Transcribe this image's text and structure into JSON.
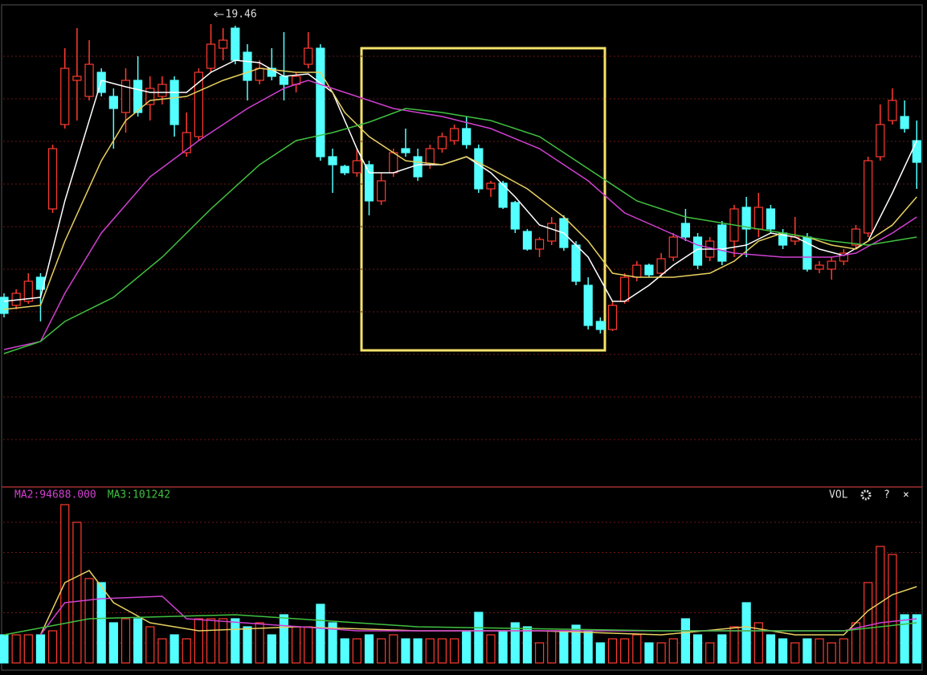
{
  "chart_data": [
    {
      "type": "candlestick",
      "annotation": "19.46",
      "ylim": [
        7.98,
        19.9
      ],
      "grid": true,
      "up_color": "#ff3b30",
      "down_color": "#54ffff",
      "open": [
        12.66,
        12.46,
        12.56,
        13.16,
        14.86,
        16.96,
        18.06,
        17.66,
        18.26,
        17.66,
        17.26,
        18.06,
        17.46,
        17.66,
        18.06,
        16.26,
        16.66,
        18.36,
        18.86,
        19.36,
        18.76,
        18.06,
        18.36,
        18.16,
        17.96,
        18.46,
        18.86,
        16.16,
        15.92,
        15.76,
        15.96,
        15.06,
        15.76,
        16.36,
        16.16,
        15.96,
        16.36,
        16.56,
        16.86,
        16.36,
        15.36,
        15.5,
        15.02,
        14.3,
        13.86,
        14.06,
        14.62,
        13.96,
        12.96,
        12.06,
        11.86,
        12.56,
        13.16,
        13.46,
        13.26,
        13.66,
        14.5,
        14.16,
        13.66,
        14.46,
        14.06,
        14.9,
        14.36,
        14.86,
        14.26,
        14.06,
        14.16,
        13.36,
        13.36,
        13.56,
        13.96,
        14.26,
        16.16,
        17.06,
        17.16,
        16.56
      ],
      "high": [
        12.76,
        12.86,
        13.26,
        13.26,
        16.46,
        18.86,
        19.36,
        19.06,
        18.36,
        17.86,
        18.36,
        18.66,
        18.16,
        18.16,
        18.16,
        17.26,
        18.36,
        19.46,
        19.36,
        19.42,
        18.96,
        18.56,
        18.86,
        19.26,
        18.26,
        19.26,
        18.96,
        16.36,
        15.96,
        16.36,
        16.06,
        15.76,
        16.36,
        16.86,
        16.36,
        16.46,
        16.76,
        16.96,
        17.16,
        16.46,
        15.56,
        15.56,
        15.06,
        14.36,
        14.16,
        14.66,
        14.7,
        14.06,
        13.16,
        12.16,
        12.56,
        13.26,
        13.56,
        13.5,
        13.76,
        14.26,
        14.86,
        14.26,
        14.16,
        14.56,
        14.96,
        15.16,
        15.26,
        14.96,
        14.36,
        14.66,
        14.26,
        13.56,
        13.66,
        13.86,
        14.46,
        16.16,
        17.46,
        17.86,
        17.56,
        17.06
      ],
      "low": [
        12.16,
        12.36,
        12.5,
        12.06,
        14.76,
        16.86,
        17.06,
        17.56,
        17.66,
        16.36,
        16.76,
        17.16,
        17.06,
        17.46,
        16.66,
        16.16,
        16.56,
        18.26,
        18.56,
        18.46,
        17.56,
        17.96,
        18.06,
        17.56,
        17.76,
        18.36,
        16.06,
        15.26,
        15.7,
        15.66,
        14.7,
        14.96,
        15.66,
        16.16,
        15.56,
        15.86,
        16.26,
        16.46,
        16.36,
        15.26,
        15.16,
        14.86,
        14.26,
        13.82,
        13.66,
        13.96,
        13.82,
        12.96,
        11.86,
        11.76,
        11.82,
        12.5,
        13.06,
        13.16,
        13.16,
        13.56,
        14.06,
        13.36,
        13.56,
        13.46,
        13.66,
        13.66,
        14.16,
        14.26,
        13.86,
        13.96,
        13.3,
        13.26,
        13.1,
        13.46,
        13.86,
        14.16,
        16.06,
        16.96,
        16.76,
        15.36
      ],
      "close": [
        12.26,
        12.76,
        13.06,
        12.86,
        16.36,
        18.36,
        18.16,
        18.46,
        17.76,
        17.36,
        18.06,
        17.26,
        17.86,
        17.96,
        16.96,
        16.76,
        18.26,
        18.96,
        19.06,
        18.56,
        18.06,
        18.36,
        18.16,
        17.96,
        18.16,
        18.86,
        16.16,
        15.96,
        15.76,
        16.06,
        15.06,
        15.56,
        16.26,
        16.26,
        15.66,
        16.36,
        16.66,
        16.86,
        16.46,
        15.36,
        15.5,
        14.9,
        14.36,
        13.86,
        14.1,
        14.5,
        13.9,
        13.06,
        11.96,
        11.86,
        12.46,
        13.16,
        13.46,
        13.22,
        13.62,
        14.16,
        14.16,
        13.46,
        14.06,
        13.56,
        14.86,
        14.36,
        14.9,
        14.36,
        13.96,
        14.16,
        13.36,
        13.46,
        13.56,
        13.76,
        14.36,
        16.06,
        16.96,
        17.56,
        16.86,
        16.02
      ],
      "series": [
        {
          "color": "#ffffff",
          "x": [
            0,
            3,
            5,
            7,
            8,
            10,
            12,
            15,
            17,
            19,
            21,
            23,
            25,
            27,
            29,
            30,
            32,
            34,
            36,
            38,
            40,
            42,
            44,
            46,
            48,
            50,
            51,
            53,
            55,
            57,
            59,
            61,
            63,
            65,
            67,
            69,
            71,
            73,
            75
          ],
          "values": [
            12.56,
            12.66,
            15.06,
            17.06,
            18.06,
            17.9,
            17.76,
            17.76,
            18.26,
            18.56,
            18.5,
            18.16,
            18.22,
            17.76,
            16.36,
            15.76,
            15.76,
            15.96,
            15.96,
            16.16,
            15.76,
            15.16,
            14.46,
            14.26,
            13.66,
            12.56,
            12.56,
            12.96,
            13.46,
            13.86,
            13.86,
            13.96,
            14.26,
            14.16,
            13.86,
            13.7,
            14.06,
            15.26,
            16.56
          ]
        },
        {
          "color": "#e8d060",
          "x": [
            0,
            3,
            5,
            8,
            10,
            12,
            15,
            18,
            21,
            24,
            26,
            28,
            30,
            33,
            36,
            38,
            40,
            43,
            46,
            48,
            50,
            52,
            55,
            58,
            60,
            62,
            64,
            66,
            68,
            70,
            73,
            75
          ],
          "values": [
            12.36,
            12.46,
            14.06,
            16.06,
            17.06,
            17.56,
            17.66,
            18.06,
            18.36,
            18.26,
            18.26,
            17.26,
            16.66,
            16.06,
            15.96,
            16.16,
            15.86,
            15.36,
            14.66,
            14.06,
            13.26,
            13.16,
            13.16,
            13.26,
            13.56,
            14.06,
            14.26,
            14.16,
            13.96,
            13.86,
            14.46,
            15.16
          ]
        },
        {
          "color": "#d040d0",
          "x": [
            0,
            3,
            5,
            8,
            12,
            16,
            20,
            23,
            25,
            28,
            32,
            36,
            40,
            44,
            48,
            51,
            54,
            57,
            60,
            64,
            68,
            70,
            73,
            75
          ],
          "values": [
            11.36,
            11.56,
            12.76,
            14.26,
            15.66,
            16.56,
            17.36,
            17.86,
            18.06,
            17.76,
            17.36,
            17.16,
            16.86,
            16.36,
            15.56,
            14.76,
            14.36,
            13.96,
            13.76,
            13.66,
            13.66,
            13.76,
            14.26,
            14.66
          ]
        },
        {
          "color": "#40c040",
          "x": [
            0,
            3,
            5,
            9,
            13,
            17,
            21,
            24,
            27,
            30,
            33,
            36,
            40,
            44,
            48,
            52,
            56,
            60,
            64,
            68,
            71,
            73,
            75
          ],
          "values": [
            11.26,
            11.56,
            12.06,
            12.66,
            13.66,
            14.86,
            15.96,
            16.56,
            16.76,
            17.02,
            17.36,
            17.26,
            17.06,
            16.66,
            15.86,
            15.06,
            14.66,
            14.46,
            14.26,
            14.06,
            13.96,
            14.06,
            14.16
          ]
        }
      ]
    },
    {
      "type": "bar",
      "label": "VOL",
      "buttons": [
        "?",
        "×"
      ],
      "ylim": [
        0,
        430000
      ],
      "values": [
        70000,
        70000,
        70000,
        70000,
        80000,
        394000,
        350000,
        210000,
        200000,
        100000,
        110000,
        110000,
        90000,
        60000,
        70000,
        60000,
        110000,
        110000,
        110000,
        110000,
        90000,
        100000,
        70000,
        120000,
        90000,
        90000,
        146000,
        100000,
        60000,
        60000,
        70000,
        60000,
        70000,
        60000,
        60000,
        60000,
        60000,
        60000,
        80000,
        126000,
        70000,
        80000,
        100000,
        90000,
        50000,
        80000,
        80000,
        94000,
        80000,
        50000,
        60000,
        60000,
        70000,
        50000,
        50000,
        60000,
        110000,
        70000,
        50000,
        70000,
        90000,
        150000,
        100000,
        70000,
        60000,
        50000,
        60000,
        60000,
        50000,
        60000,
        100000,
        200000,
        290000,
        270000,
        120000,
        120000
      ],
      "series": [
        {
          "color": "#e8d060",
          "x": [
            3,
            5,
            7,
            9,
            12,
            16,
            24,
            34,
            44,
            54,
            61,
            65,
            69,
            71,
            73,
            75
          ],
          "values": [
            70000,
            200000,
            230000,
            150000,
            100000,
            80000,
            90000,
            80000,
            80000,
            70000,
            90000,
            70000,
            70000,
            130000,
            170000,
            190000
          ]
        },
        {
          "name": "MA2:94688.000",
          "color": "#d040d0",
          "x": [
            3,
            5,
            8,
            13,
            15,
            29,
            49,
            69,
            72,
            75
          ],
          "values": [
            70000,
            150000,
            160000,
            166000,
            110000,
            80000,
            80000,
            80000,
            100000,
            110000
          ]
        },
        {
          "name": "MA3:101242",
          "color": "#40c040",
          "x": [
            0,
            7,
            19,
            34,
            54,
            69,
            75
          ],
          "values": [
            70000,
            110000,
            120000,
            90000,
            80000,
            80000,
            100000
          ]
        }
      ]
    }
  ]
}
